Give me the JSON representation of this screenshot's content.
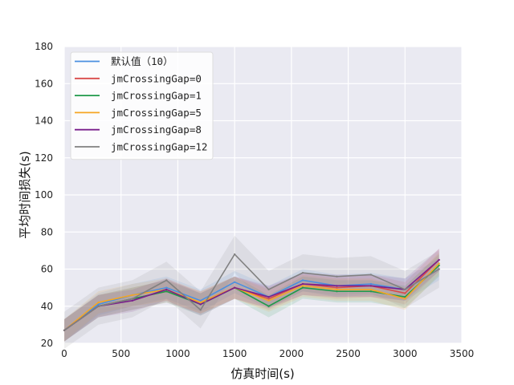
{
  "chart_data": {
    "type": "line",
    "title": "",
    "xlabel": "仿真时间(s)",
    "ylabel": "平均时间损失(s)",
    "xlim": [
      0,
      3500
    ],
    "ylim": [
      20,
      180
    ],
    "xticks": [
      0,
      500,
      1000,
      1500,
      2000,
      2500,
      3000,
      3500
    ],
    "yticks": [
      20,
      40,
      60,
      80,
      100,
      120,
      140,
      160,
      180
    ],
    "grid": true,
    "legend_position": "top-left",
    "x": [
      0,
      300,
      600,
      900,
      1200,
      1500,
      1800,
      2100,
      2400,
      2700,
      3000,
      3300
    ],
    "series": [
      {
        "name": "默认值（10）",
        "color": "#4a8fe0",
        "values": [
          27,
          41,
          46,
          50,
          43,
          53,
          45,
          54,
          51,
          52,
          49,
          60
        ],
        "band": 6
      },
      {
        "name": "jmCrossingGap=0",
        "color": "#d94a4a",
        "values": [
          27,
          40,
          44,
          48,
          42,
          50,
          44,
          52,
          50,
          51,
          47,
          65
        ],
        "band": 6
      },
      {
        "name": "jmCrossingGap=1",
        "color": "#1f9a4a",
        "values": [
          27,
          40,
          44,
          48,
          41,
          50,
          40,
          50,
          48,
          48,
          45,
          62
        ],
        "band": 6
      },
      {
        "name": "jmCrossingGap=5",
        "color": "#f5a623",
        "values": [
          27,
          42,
          46,
          49,
          42,
          50,
          43,
          51,
          49,
          49,
          44,
          63
        ],
        "band": 6
      },
      {
        "name": "jmCrossingGap=8",
        "color": "#7a1f8c",
        "values": [
          27,
          40,
          43,
          49,
          41,
          50,
          45,
          52,
          51,
          51,
          49,
          65
        ],
        "band": 6
      },
      {
        "name": "jmCrossingGap=12",
        "color": "#808080",
        "values": [
          27,
          40,
          44,
          54,
          38,
          68,
          49,
          58,
          56,
          57,
          49,
          60
        ],
        "band": 10
      }
    ]
  }
}
